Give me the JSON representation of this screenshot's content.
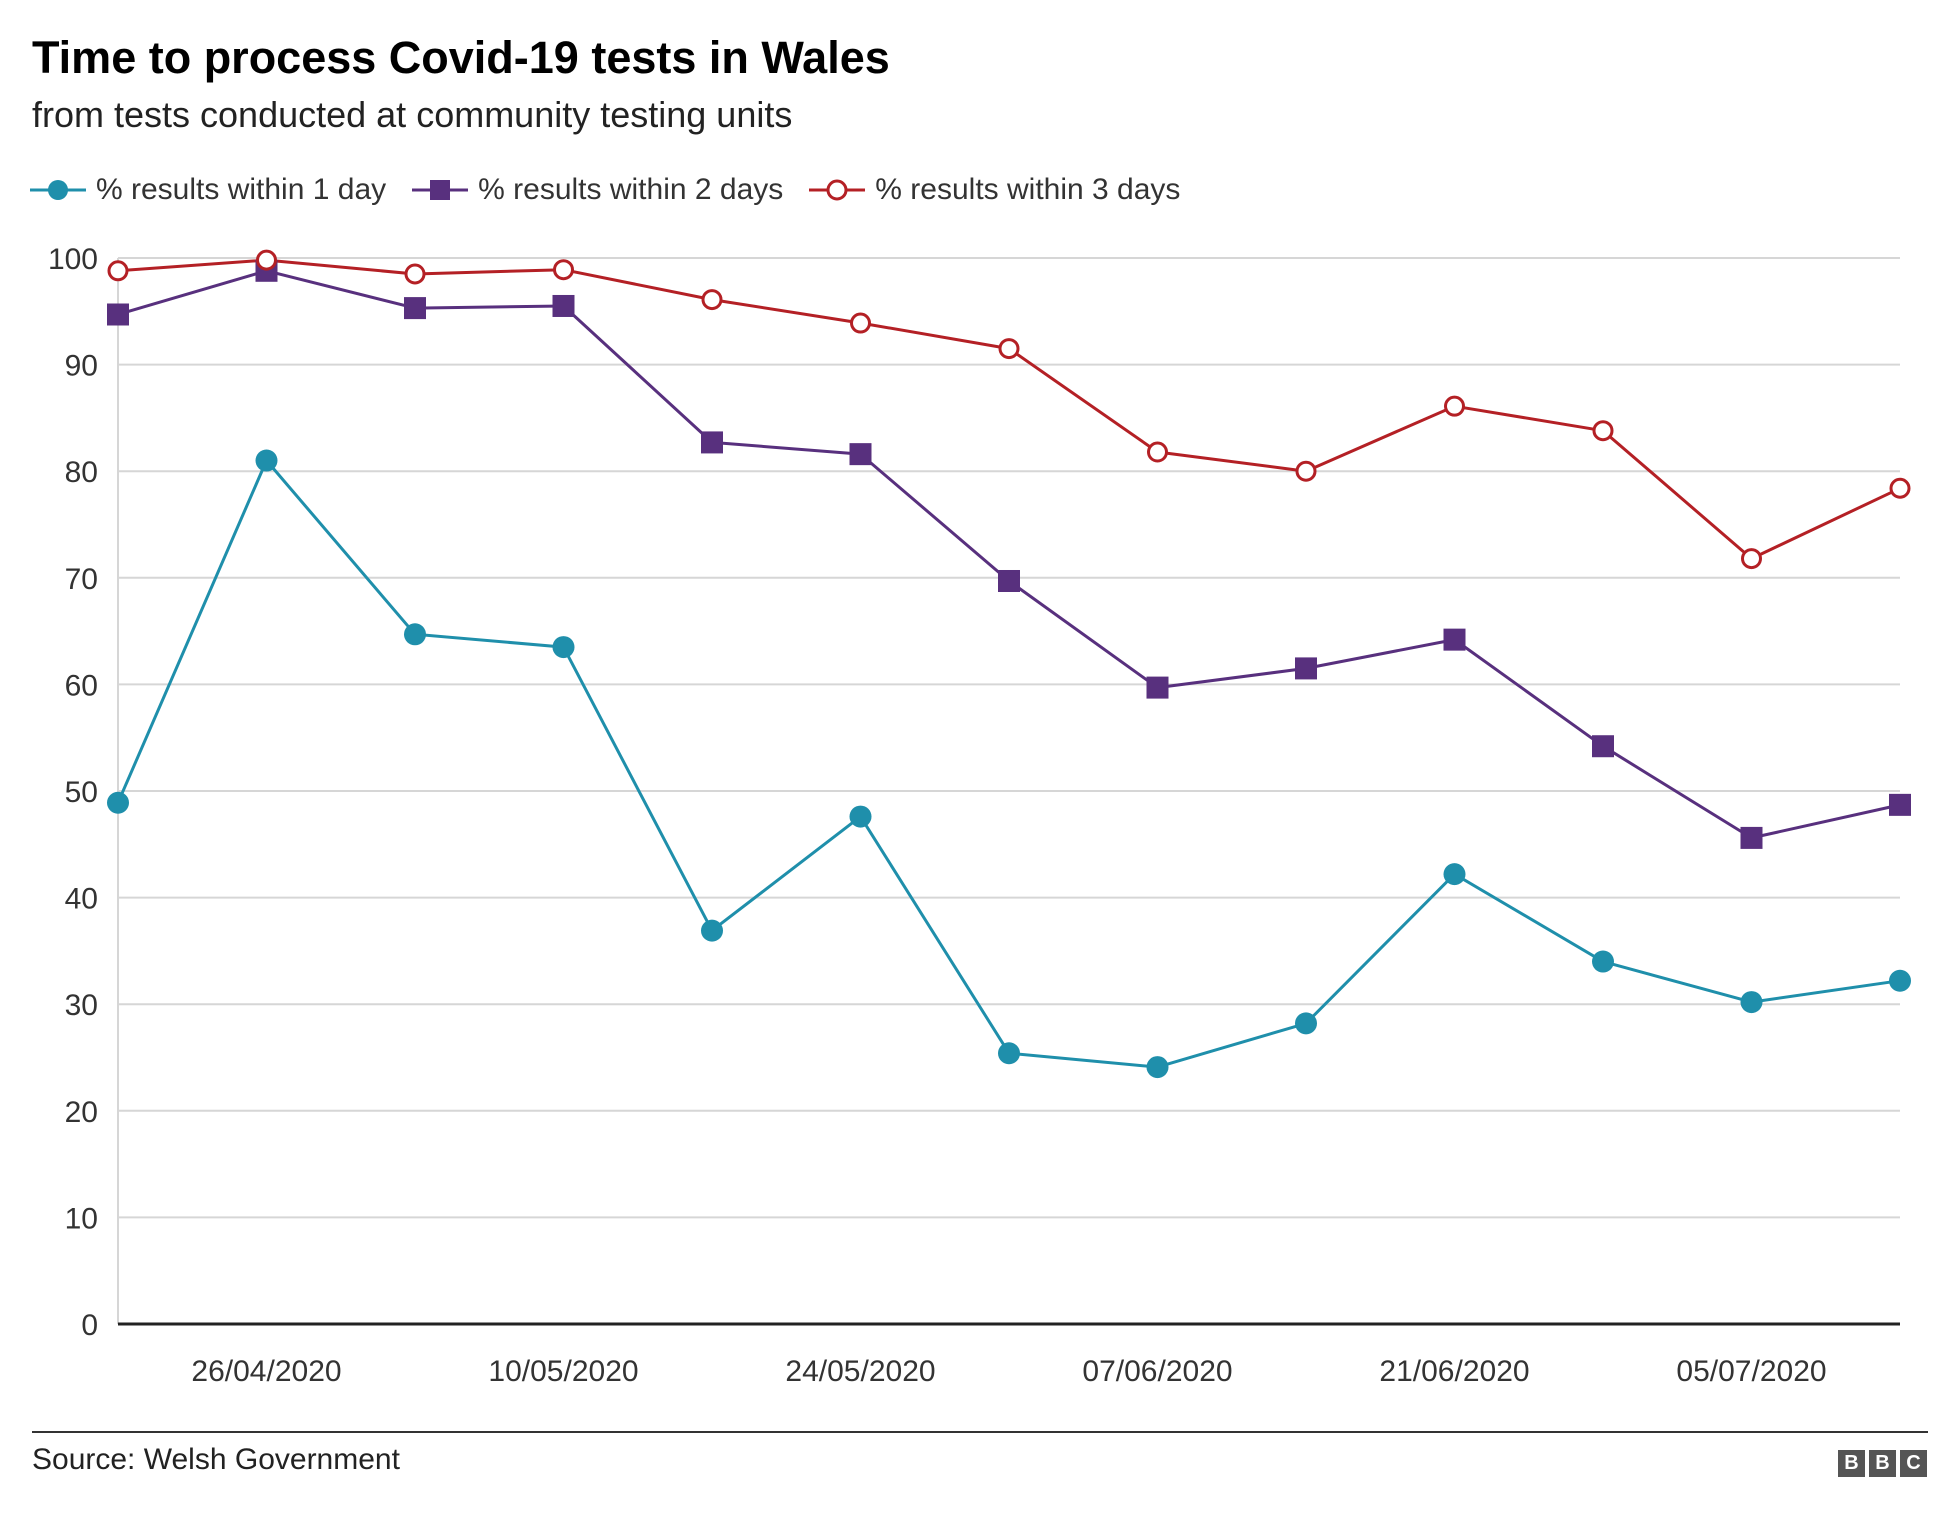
{
  "title": "Time to process Covid-19 tests in Wales",
  "subtitle": "from tests conducted at community testing units",
  "source": "Source: Welsh Government",
  "logo": [
    "B",
    "B",
    "C"
  ],
  "chart_data": {
    "type": "line",
    "x": [
      "2020-04-19",
      "2020-04-26",
      "2020-05-03",
      "2020-05-10",
      "2020-05-17",
      "2020-05-24",
      "2020-05-31",
      "2020-06-07",
      "2020-06-14",
      "2020-06-21",
      "2020-06-28",
      "2020-07-05",
      "2020-07-12"
    ],
    "x_tick_labels": [
      {
        "x": "2020-04-26",
        "label": "26/04/2020"
      },
      {
        "x": "2020-05-10",
        "label": "10/05/2020"
      },
      {
        "x": "2020-05-24",
        "label": "24/05/2020"
      },
      {
        "x": "2020-06-07",
        "label": "07/06/2020"
      },
      {
        "x": "2020-06-21",
        "label": "21/06/2020"
      },
      {
        "x": "2020-07-05",
        "label": "05/07/2020"
      }
    ],
    "series": [
      {
        "name": "% results within 1 day",
        "color": "#1f8fab",
        "marker": "filled-circle",
        "values": [
          48.9,
          81.0,
          64.7,
          63.5,
          36.9,
          47.6,
          25.4,
          24.1,
          28.2,
          42.2,
          34.0,
          30.2,
          32.2
        ]
      },
      {
        "name": "% results within 2 days",
        "color": "#58307e",
        "marker": "filled-square",
        "values": [
          94.7,
          98.8,
          95.3,
          95.5,
          82.7,
          81.6,
          69.7,
          59.7,
          61.5,
          64.2,
          54.2,
          45.6,
          48.7
        ]
      },
      {
        "name": "% results within 3 days",
        "color": "#b42025",
        "marker": "hollow-circle",
        "values": [
          98.8,
          99.8,
          98.5,
          98.9,
          96.1,
          93.9,
          91.5,
          81.8,
          80.0,
          86.1,
          83.8,
          71.8,
          78.4
        ]
      }
    ],
    "ylim": [
      0,
      100
    ],
    "y_ticks": [
      0,
      10,
      20,
      30,
      40,
      50,
      60,
      70,
      80,
      90,
      100
    ],
    "xlabel": "",
    "ylabel": "",
    "grid": true,
    "legend_position": "top-left"
  }
}
